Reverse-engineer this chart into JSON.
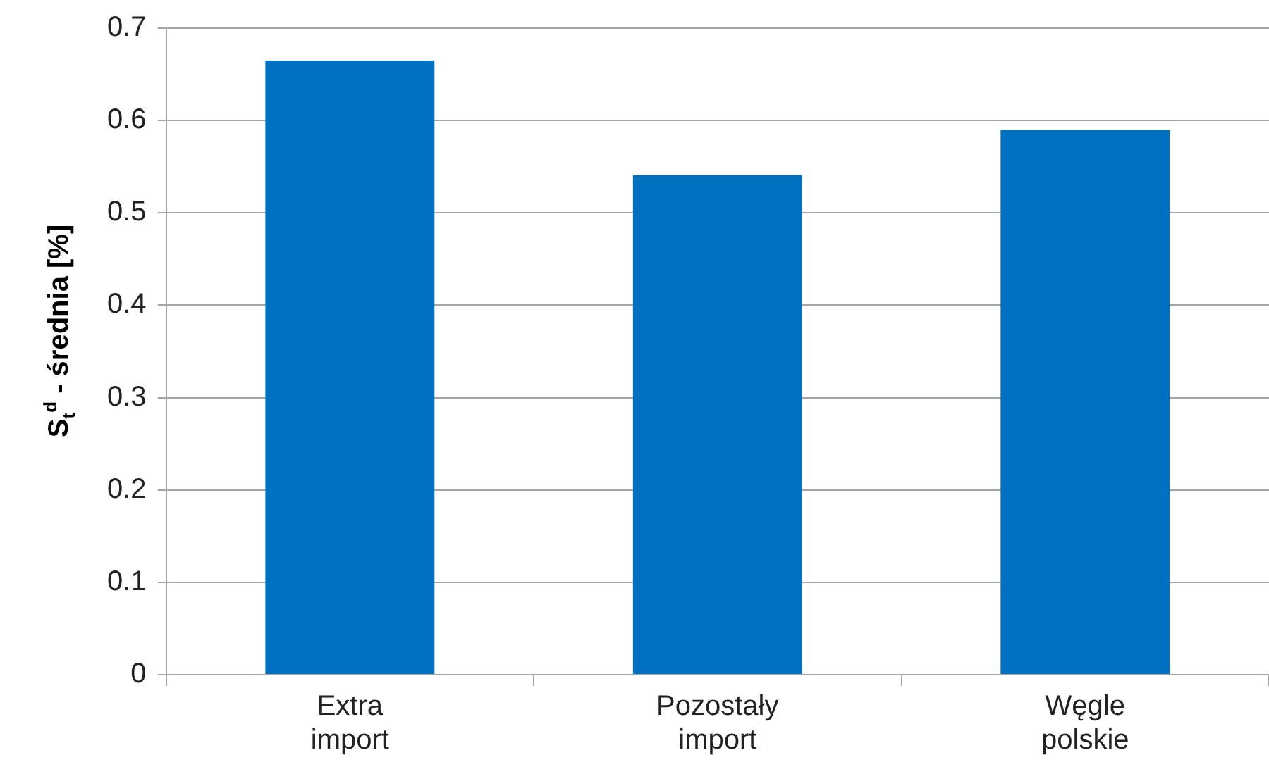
{
  "chart_data": {
    "type": "bar",
    "ylabel": "S$_{t}$$^{d}$ - średnia [%]",
    "categories": [
      "Extra import",
      "Pozostały import",
      "Węgle polskie"
    ],
    "values": [
      0.665,
      0.541,
      0.59
    ],
    "color": "#0070c0",
    "ylim": [
      0,
      0.7
    ],
    "yticks": [
      0,
      0.1,
      0.2,
      0.3,
      0.4,
      0.5,
      0.6,
      0.7
    ],
    "grid": "y",
    "legend": false
  }
}
